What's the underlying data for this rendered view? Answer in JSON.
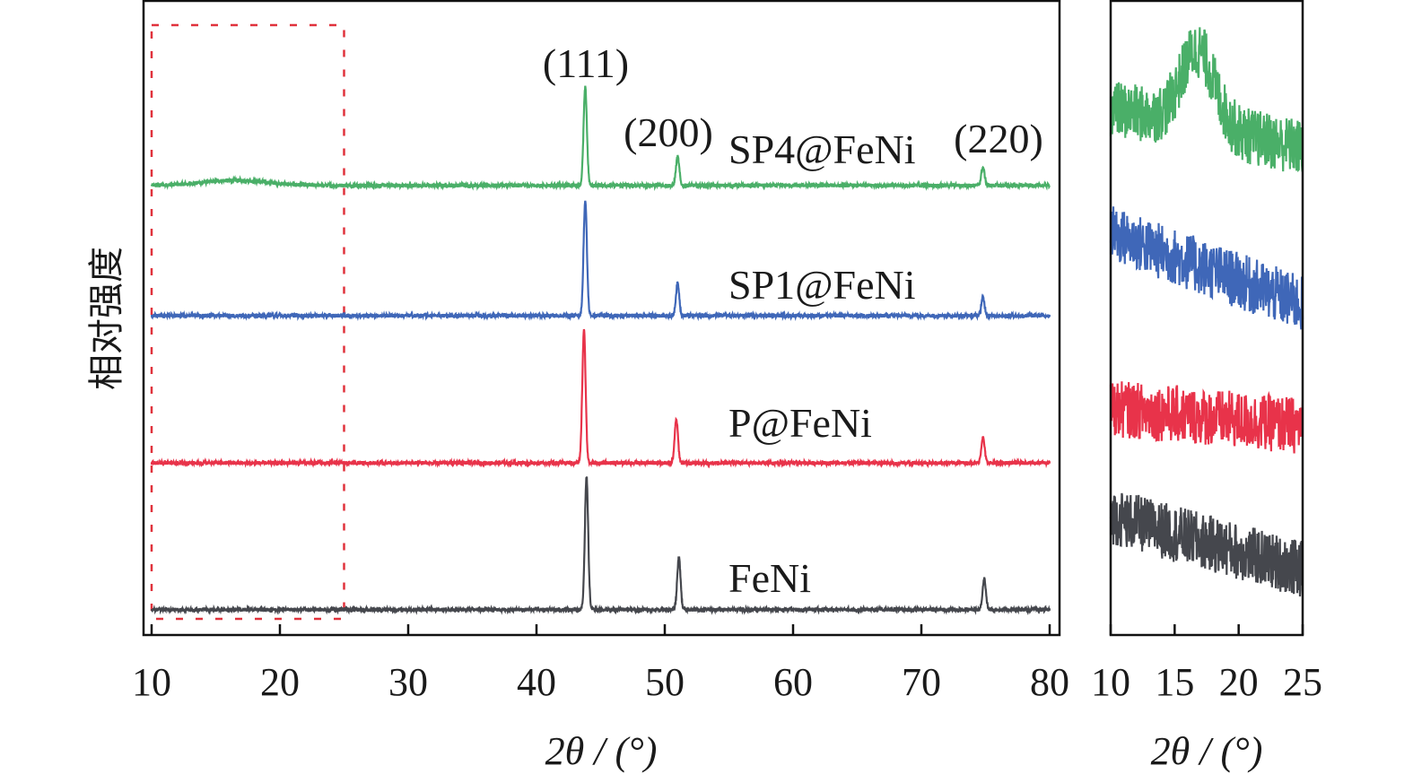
{
  "chart_data": [
    {
      "type": "line",
      "xlabel": "2θ / (°)",
      "ylabel": "相对强度",
      "xlim": [
        10,
        80
      ],
      "ylim": [
        0,
        100
      ],
      "y_unit": "a.u. (stacked, no tick labels)",
      "xticks": [
        10,
        20,
        30,
        40,
        50,
        60,
        70,
        80
      ],
      "grid": false,
      "highlight_box": {
        "x_range": [
          10,
          25
        ],
        "color": "#e0323c",
        "style": "dashed"
      },
      "peak_labels": [
        {
          "text": "(111)",
          "x": 43.8
        },
        {
          "text": "(200)",
          "x": 51.0
        },
        {
          "text": "(220)",
          "x": 74.8
        }
      ],
      "series": [
        {
          "name": "SP4@FeNi",
          "color": "#4aaf68",
          "baseline": 70.8,
          "peaks": [
            {
              "x": 43.8,
              "height": 15.4
            },
            {
              "x": 51.0,
              "height": 4.5
            },
            {
              "x": 74.8,
              "height": 2.8
            }
          ],
          "broad_hump": {
            "x": 16.5,
            "height": 0.8
          }
        },
        {
          "name": "SP1@FeNi",
          "color": "#3f67b8",
          "baseline": 50.3,
          "peaks": [
            {
              "x": 43.8,
              "height": 18.1
            },
            {
              "x": 51.0,
              "height": 5.1
            },
            {
              "x": 74.8,
              "height": 2.8
            }
          ]
        },
        {
          "name": "P@FeNi",
          "color": "#e8334a",
          "baseline": 27.1,
          "peaks": [
            {
              "x": 43.7,
              "height": 20.9
            },
            {
              "x": 50.9,
              "height": 6.8
            },
            {
              "x": 74.8,
              "height": 4.0
            }
          ]
        },
        {
          "name": "FeNi",
          "color": "#45474d",
          "baseline": 4.0,
          "peaks": [
            {
              "x": 43.9,
              "height": 20.9
            },
            {
              "x": 51.1,
              "height": 8.2
            },
            {
              "x": 74.9,
              "height": 4.9
            }
          ]
        }
      ]
    },
    {
      "type": "line",
      "xlabel": "2θ / (°)",
      "xlim": [
        10,
        25
      ],
      "ylim": [
        0,
        100
      ],
      "xticks": [
        10,
        15,
        20,
        25
      ],
      "grid": false,
      "series": [
        {
          "color": "#4aaf68",
          "start": 83.0,
          "end": 76.7,
          "hump": {
            "x": 16.8,
            "height": 12
          }
        },
        {
          "color": "#3f67b8",
          "start": 63.3,
          "end": 52.0
        },
        {
          "color": "#e8334a",
          "start": 35.7,
          "end": 32.9
        },
        {
          "color": "#45474d",
          "start": 18.8,
          "end": 10.3
        }
      ]
    }
  ]
}
